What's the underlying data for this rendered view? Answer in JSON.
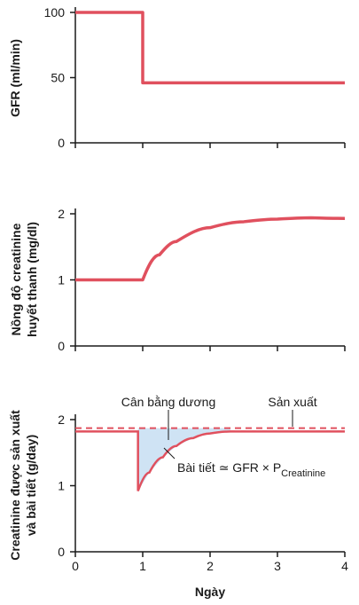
{
  "chart_data": [
    {
      "type": "line",
      "ylabel": "GFR (ml/min)",
      "xlabel": "",
      "xlim": [
        0,
        4
      ],
      "ylim": [
        0,
        100
      ],
      "yticks": [
        0,
        50,
        100
      ],
      "series": [
        {
          "x": [
            0,
            1,
            1,
            4
          ],
          "y": [
            100,
            100,
            46,
            46
          ]
        }
      ]
    },
    {
      "type": "line",
      "ylabel": [
        "Nồng độ creatinine",
        "huyết thanh (mg/dl)"
      ],
      "xlabel": "",
      "xlim": [
        0,
        4
      ],
      "ylim": [
        0,
        2
      ],
      "yticks": [
        0,
        1,
        2
      ],
      "series": [
        {
          "x": [
            0,
            1,
            1.25,
            1.5,
            2,
            2.5,
            3,
            3.5,
            4
          ],
          "y": [
            1.0,
            1.0,
            1.38,
            1.58,
            1.79,
            1.88,
            1.92,
            1.94,
            1.93
          ]
        }
      ]
    },
    {
      "type": "line",
      "ylabel": [
        "Creatinine được sản xuất",
        "và bài tiết  (g/day)"
      ],
      "xlabel": "Ngày",
      "xlim": [
        0,
        4
      ],
      "ylim": [
        0,
        2
      ],
      "xticks": [
        0,
        1,
        2,
        3,
        4
      ],
      "yticks": [
        0,
        1,
        2
      ],
      "series": [
        {
          "name": "Sản xuất",
          "style": "dashed",
          "x": [
            0,
            4
          ],
          "y": [
            1.87,
            1.87
          ]
        },
        {
          "name": "Bài tiết",
          "x": [
            0,
            0.93,
            0.93,
            1.1,
            1.3,
            1.5,
            1.75,
            2.0,
            2.3,
            4
          ],
          "y": [
            1.82,
            1.82,
            0.92,
            1.2,
            1.43,
            1.6,
            1.72,
            1.79,
            1.82,
            1.82
          ]
        }
      ],
      "annotations": {
        "shaded_region": "Cân bằng dương",
        "production": "Sản xuất",
        "excretion_prefix": "Bài tiết  ≃ GFR × P",
        "excretion_subscript": "Creatinine"
      }
    }
  ],
  "colors": {
    "curve": "#e0505e",
    "shade": "#cfe3f4",
    "axis": "#1a1a1a"
  }
}
